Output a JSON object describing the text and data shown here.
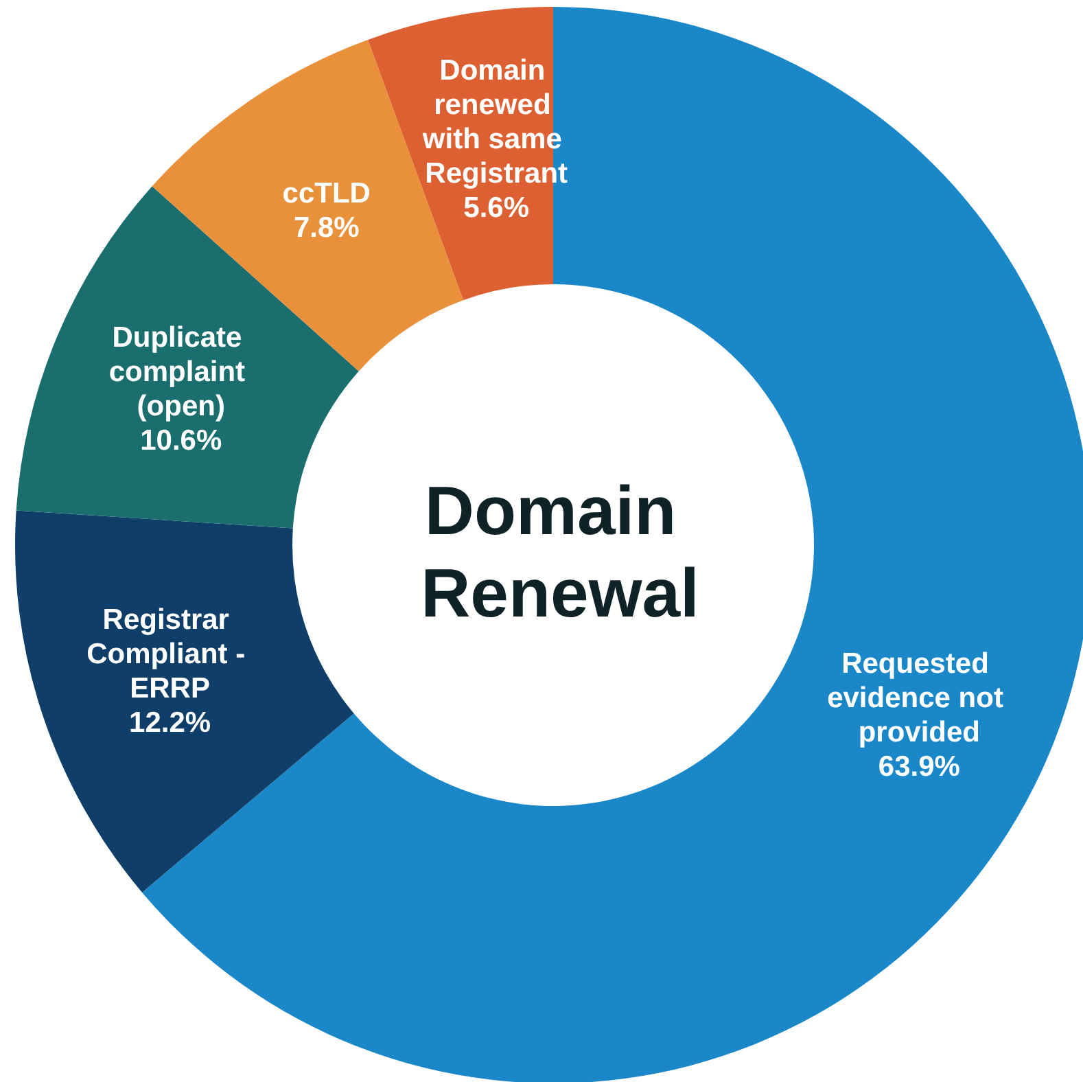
{
  "chart_data": {
    "type": "donut",
    "title": "Domain Renewal",
    "categories": [
      "Requested evidence not provided",
      "Registrar Compliant - ERRP",
      "Duplicate complaint (open)",
      "ccTLD",
      "Domain renewed with same Registrant"
    ],
    "values": [
      63.9,
      12.2,
      10.6,
      7.8,
      5.6
    ],
    "colors": [
      "#1a87c8",
      "#0f3f68",
      "#1b6e6e",
      "#e8913a",
      "#dd6033"
    ],
    "value_labels": [
      "63.9%",
      "12.2%",
      "10.6%",
      "7.8%",
      "5.6%"
    ],
    "legend": false
  }
}
